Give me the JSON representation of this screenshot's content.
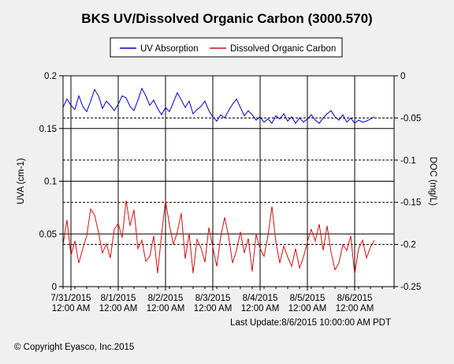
{
  "footer": {
    "copyright": "© Copyright Eyasco, Inc.2015"
  },
  "chart_data": {
    "type": "line",
    "title": "BKS UV/Dissolved Organic Carbon (3000.570)",
    "ylabel": "UVA (cm-1)",
    "y2label": "DOC (mg/L)",
    "ylim": [
      0,
      0.2
    ],
    "y2lim": [
      -0.25,
      0
    ],
    "yticks": [
      "0",
      "0.05",
      "0.1",
      "0.15",
      "0.2"
    ],
    "y2ticks": [
      "-0.25",
      "-0.2",
      "-0.15",
      "-0.1",
      "-0.05",
      "0"
    ],
    "xlim": [
      "2015-07-30T20:00",
      "2015-08-06T20:00"
    ],
    "xticks": [
      {
        "line1": "7/31/2015",
        "line2": "12:00 AM"
      },
      {
        "line1": "8/1/2015",
        "line2": "12:00 AM"
      },
      {
        "line1": "8/2/2015",
        "line2": "12:00 AM"
      },
      {
        "line1": "8/3/2015",
        "line2": "12:00 AM"
      },
      {
        "line1": "8/4/2015",
        "line2": "12:00 AM"
      },
      {
        "line1": "8/5/2015",
        "line2": "12:00 AM"
      },
      {
        "line1": "8/6/2015",
        "line2": "12:00 AM"
      }
    ],
    "grid": true,
    "legend": "top-center",
    "last_update": "Last Update:8/6/2015 10:00:00 AM PDT",
    "series": [
      {
        "name": "UV Absorption",
        "axis": "left",
        "color": "#0000c8",
        "x": [
          "2015-07-30T20:00",
          "2015-07-30T22:00",
          "2015-07-31T00:00",
          "2015-07-31T02:00",
          "2015-07-31T04:00",
          "2015-07-31T06:00",
          "2015-07-31T08:00",
          "2015-07-31T10:00",
          "2015-07-31T12:00",
          "2015-07-31T14:00",
          "2015-07-31T16:00",
          "2015-07-31T18:00",
          "2015-07-31T20:00",
          "2015-07-31T22:00",
          "2015-08-01T00:00",
          "2015-08-01T02:00",
          "2015-08-01T04:00",
          "2015-08-01T06:00",
          "2015-08-01T08:00",
          "2015-08-01T10:00",
          "2015-08-01T12:00",
          "2015-08-01T14:00",
          "2015-08-01T16:00",
          "2015-08-01T18:00",
          "2015-08-01T20:00",
          "2015-08-01T22:00",
          "2015-08-02T00:00",
          "2015-08-02T02:00",
          "2015-08-02T04:00",
          "2015-08-02T06:00",
          "2015-08-02T08:00",
          "2015-08-02T10:00",
          "2015-08-02T12:00",
          "2015-08-02T14:00",
          "2015-08-02T16:00",
          "2015-08-02T18:00",
          "2015-08-02T20:00",
          "2015-08-02T22:00",
          "2015-08-03T00:00",
          "2015-08-03T02:00",
          "2015-08-03T04:00",
          "2015-08-03T06:00",
          "2015-08-03T08:00",
          "2015-08-03T10:00",
          "2015-08-03T12:00",
          "2015-08-03T14:00",
          "2015-08-03T16:00",
          "2015-08-03T18:00",
          "2015-08-03T20:00",
          "2015-08-03T22:00",
          "2015-08-04T00:00",
          "2015-08-04T02:00",
          "2015-08-04T04:00",
          "2015-08-04T06:00",
          "2015-08-04T08:00",
          "2015-08-04T10:00",
          "2015-08-04T12:00",
          "2015-08-04T14:00",
          "2015-08-04T16:00",
          "2015-08-04T18:00",
          "2015-08-04T20:00",
          "2015-08-04T22:00",
          "2015-08-05T00:00",
          "2015-08-05T02:00",
          "2015-08-05T04:00",
          "2015-08-05T06:00",
          "2015-08-05T08:00",
          "2015-08-05T10:00",
          "2015-08-05T12:00",
          "2015-08-05T14:00",
          "2015-08-05T16:00",
          "2015-08-05T18:00",
          "2015-08-05T20:00",
          "2015-08-05T22:00",
          "2015-08-06T00:00",
          "2015-08-06T02:00",
          "2015-08-06T04:00",
          "2015-08-06T06:00",
          "2015-08-06T08:00",
          "2015-08-06T10:00"
        ],
        "y": [
          0.17,
          0.178,
          0.172,
          0.168,
          0.181,
          0.171,
          0.166,
          0.176,
          0.187,
          0.181,
          0.169,
          0.176,
          0.172,
          0.167,
          0.173,
          0.181,
          0.179,
          0.171,
          0.167,
          0.177,
          0.188,
          0.181,
          0.172,
          0.177,
          0.169,
          0.163,
          0.17,
          0.166,
          0.175,
          0.184,
          0.177,
          0.17,
          0.176,
          0.164,
          0.168,
          0.171,
          0.176,
          0.167,
          0.161,
          0.157,
          0.163,
          0.16,
          0.167,
          0.173,
          0.178,
          0.17,
          0.162,
          0.167,
          0.163,
          0.158,
          0.161,
          0.156,
          0.159,
          0.155,
          0.162,
          0.159,
          0.164,
          0.157,
          0.161,
          0.155,
          0.16,
          0.156,
          0.159,
          0.163,
          0.158,
          0.155,
          0.16,
          0.164,
          0.167,
          0.161,
          0.158,
          0.163,
          0.156,
          0.16,
          0.155,
          0.158,
          0.156,
          0.157,
          0.159,
          0.161
        ]
      },
      {
        "name": "Dissolved Organic Carbon",
        "axis": "right",
        "color": "#d01010",
        "x": [
          "2015-07-30T20:00",
          "2015-07-30T22:00",
          "2015-07-31T00:00",
          "2015-07-31T02:00",
          "2015-07-31T04:00",
          "2015-07-31T06:00",
          "2015-07-31T08:00",
          "2015-07-31T10:00",
          "2015-07-31T12:00",
          "2015-07-31T14:00",
          "2015-07-31T16:00",
          "2015-07-31T18:00",
          "2015-07-31T20:00",
          "2015-07-31T22:00",
          "2015-08-01T00:00",
          "2015-08-01T02:00",
          "2015-08-01T04:00",
          "2015-08-01T06:00",
          "2015-08-01T08:00",
          "2015-08-01T10:00",
          "2015-08-01T12:00",
          "2015-08-01T14:00",
          "2015-08-01T16:00",
          "2015-08-01T18:00",
          "2015-08-01T20:00",
          "2015-08-01T22:00",
          "2015-08-02T00:00",
          "2015-08-02T02:00",
          "2015-08-02T04:00",
          "2015-08-02T06:00",
          "2015-08-02T08:00",
          "2015-08-02T10:00",
          "2015-08-02T12:00",
          "2015-08-02T14:00",
          "2015-08-02T16:00",
          "2015-08-02T18:00",
          "2015-08-02T20:00",
          "2015-08-02T22:00",
          "2015-08-03T00:00",
          "2015-08-03T02:00",
          "2015-08-03T04:00",
          "2015-08-03T06:00",
          "2015-08-03T08:00",
          "2015-08-03T10:00",
          "2015-08-03T12:00",
          "2015-08-03T14:00",
          "2015-08-03T16:00",
          "2015-08-03T18:00",
          "2015-08-03T20:00",
          "2015-08-03T22:00",
          "2015-08-04T00:00",
          "2015-08-04T02:00",
          "2015-08-04T04:00",
          "2015-08-04T06:00",
          "2015-08-04T08:00",
          "2015-08-04T10:00",
          "2015-08-04T12:00",
          "2015-08-04T14:00",
          "2015-08-04T16:00",
          "2015-08-04T18:00",
          "2015-08-04T20:00",
          "2015-08-04T22:00",
          "2015-08-05T00:00",
          "2015-08-05T02:00",
          "2015-08-05T04:00",
          "2015-08-05T06:00",
          "2015-08-05T08:00",
          "2015-08-05T10:00",
          "2015-08-05T12:00",
          "2015-08-05T14:00",
          "2015-08-05T16:00",
          "2015-08-05T18:00",
          "2015-08-05T20:00",
          "2015-08-05T22:00",
          "2015-08-06T00:00",
          "2015-08-06T02:00",
          "2015-08-06T04:00",
          "2015-08-06T06:00",
          "2015-08-06T08:00",
          "2015-08-06T10:00"
        ],
        "y": [
          -0.2,
          -0.171,
          -0.213,
          -0.196,
          -0.222,
          -0.205,
          -0.19,
          -0.158,
          -0.165,
          -0.186,
          -0.21,
          -0.199,
          -0.216,
          -0.182,
          -0.175,
          -0.192,
          -0.148,
          -0.178,
          -0.159,
          -0.205,
          -0.195,
          -0.22,
          -0.214,
          -0.19,
          -0.234,
          -0.188,
          -0.148,
          -0.177,
          -0.2,
          -0.185,
          -0.163,
          -0.217,
          -0.187,
          -0.234,
          -0.194,
          -0.204,
          -0.221,
          -0.18,
          -0.203,
          -0.226,
          -0.191,
          -0.168,
          -0.19,
          -0.222,
          -0.207,
          -0.185,
          -0.21,
          -0.193,
          -0.232,
          -0.188,
          -0.205,
          -0.214,
          -0.19,
          -0.155,
          -0.197,
          -0.222,
          -0.202,
          -0.215,
          -0.226,
          -0.205,
          -0.228,
          -0.215,
          -0.197,
          -0.182,
          -0.196,
          -0.176,
          -0.207,
          -0.178,
          -0.209,
          -0.23,
          -0.222,
          -0.2,
          -0.207,
          -0.19,
          -0.235,
          -0.205,
          -0.195,
          -0.216,
          -0.203,
          -0.195
        ]
      }
    ]
  }
}
